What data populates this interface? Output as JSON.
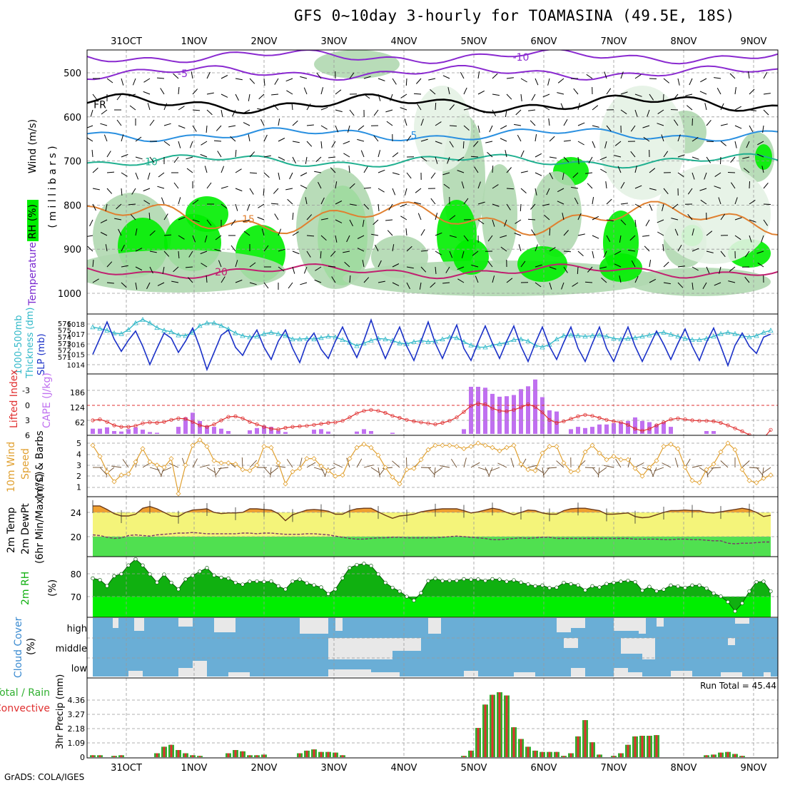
{
  "title": "GFS 0~10day 3-hourly for TOAMASINA (49.5E, 18S)",
  "credit": "GrADS: COLA/IGES",
  "colors": {
    "rh_light": "#e4f2e4",
    "rh_mid": "#b0d8b0",
    "rh_dark": "#72c472",
    "rh_bright": "#00ee00",
    "cape_bar": "#c070f0",
    "lifted_index": "#e03030",
    "wind_speed": "#e0a030",
    "slp": "#1a30c8",
    "thickness": "#30b8c8",
    "temp_fill": "#f0a030",
    "dewpt_band": "#f4f47a",
    "dewpt_fill": "#50e050",
    "rh2m_dark": "#10b010",
    "rh2m_bright": "#00ee00",
    "cloud_bg": "#6aaed6",
    "cloud_fill": "#e8e8e8",
    "precip_total": "#30b030",
    "precip_conv": "#e03030"
  },
  "date_labels": [
    "31OCT",
    "1NOV",
    "2NOV",
    "3NOV",
    "4NOV",
    "5NOV",
    "6NOV",
    "7NOV",
    "8NOV",
    "9NOV"
  ],
  "panel_labels": {
    "p1_wind": "Wind (m/s)",
    "p1_temp": "Temperature (°C)",
    "p1_rh": "RH (%)",
    "p1_mb": "( m i l l i b a r s )",
    "p2_thick": "1000-500mb",
    "p2_thick2": "Thickness (dm)",
    "p2_slp": "SLP (mb)",
    "p3_li": "Lifted Index",
    "p3_cape": "CAPE (J/kg)",
    "p4_a": "10m Wind",
    "p4_b": "Speed",
    "p4_c": "(m/s) & Barbs",
    "p5_a": "2m Temp",
    "p5_b": "2m DewPt",
    "p5_c": "(6hr Min/Max) (°C)",
    "p6_a": "2m RH",
    "p6_b": "(%)",
    "p7_a": "Cloud Cover",
    "p7_b": "(%)",
    "p8_a": "Total / Rain",
    "p8_b": "Convective",
    "p8_c": "3hr Precip (mm)"
  },
  "run_total": "Run Total = 45.44",
  "chart_data": [
    {
      "type": "heatmap",
      "title": "Wind (m/s), Temperature (°C), RH (%)",
      "ylabel": "millibars",
      "y_ticks": [
        "500",
        "600",
        "700",
        "800",
        "900",
        "1000"
      ],
      "temperature_contours": [
        {
          "label": "-10",
          "level_mb": 463
        },
        {
          "label": "-5",
          "level_mb": 500
        },
        {
          "label": "FR",
          "level_mb": 570
        },
        {
          "label": "5",
          "level_mb": 640
        },
        {
          "label": "10",
          "level_mb": 700
        },
        {
          "label": "15",
          "level_mb": 830
        },
        {
          "label": "20",
          "level_mb": 950
        }
      ]
    },
    {
      "type": "line",
      "title": "1000-500mb Thickness (dm) / SLP (mb)",
      "thickness_ticks": [
        "576",
        "575",
        "574",
        "573",
        "572",
        "571"
      ],
      "slp_ticks": [
        "1018",
        "1017",
        "1016",
        "1015",
        "1014"
      ],
      "series": [
        {
          "name": "SLP",
          "values": [
            1015.0,
            1016.6,
            1018.2,
            1016.5,
            1015.3,
            1016.4,
            1017.3,
            1015.8,
            1014.0,
            1015.6,
            1017.1,
            1016.6,
            1015.2,
            1016.3,
            1017.6,
            1015.7,
            1013.5,
            1015.2,
            1016.9,
            1017.4,
            1015.7,
            1014.9,
            1016.3,
            1017.4,
            1015.7,
            1014.5,
            1016.3,
            1017.4,
            1015.6,
            1014.2,
            1016.2,
            1017.1,
            1015.5,
            1014.6,
            1016.3,
            1017.7,
            1016.1,
            1014.7,
            1016.4,
            1018.4,
            1016.3,
            1014.6,
            1016.2,
            1017.7,
            1015.8,
            1014.4,
            1016.3,
            1018.2,
            1016.1,
            1014.6,
            1016.3,
            1017.9,
            1015.6,
            1014.4,
            1016.2,
            1017.8,
            1016.1,
            1014.6,
            1016.3,
            1017.8,
            1015.8,
            1014.3,
            1016.1,
            1017.7,
            1015.8,
            1014.5,
            1016.2,
            1017.7,
            1015.6,
            1014.3,
            1016.1,
            1017.7,
            1015.6,
            1014.3,
            1016.1,
            1017.7,
            1015.8,
            1014.3,
            1015.8,
            1017.3,
            1016.0,
            1014.5,
            1016.1,
            1017.5,
            1015.8,
            1014.4,
            1016.2,
            1017.6,
            1015.8,
            1013.9,
            1015.9,
            1017.1,
            1015.8,
            1015.1,
            1016.7,
            1017.0
          ]
        },
        {
          "name": "Thickness",
          "values": [
            574.8,
            574.6,
            574.3,
            573.9,
            573.8,
            574.4,
            575.4,
            575.9,
            575.4,
            574.7,
            574.3,
            574.1,
            573.6,
            573.5,
            574.0,
            575.0,
            575.4,
            575.4,
            575.0,
            574.5,
            573.9,
            573.5,
            573.3,
            573.4,
            573.8,
            574.0,
            573.8,
            573.5,
            573.0,
            573.0,
            573.1,
            573.0,
            573.2,
            573.4,
            573.3,
            572.9,
            572.5,
            572.0,
            572.4,
            572.8,
            573.1,
            573.0,
            572.8,
            572.4,
            572.3,
            572.6,
            572.8,
            572.6,
            572.7,
            573.0,
            573.3,
            573.2,
            572.6,
            572.1,
            571.8,
            571.8,
            572.1,
            572.3,
            572.5,
            572.9,
            573.0,
            572.7,
            572.1,
            571.8,
            572.2,
            573.0,
            573.5,
            573.6,
            573.5,
            573.4,
            573.5,
            573.6,
            573.4,
            573.1,
            573.0,
            573.1,
            573.2,
            573.4,
            573.6,
            573.9,
            574.0,
            573.7,
            573.4,
            573.1,
            572.9,
            572.9,
            573.1,
            573.4,
            573.8,
            574.0,
            573.8,
            573.5,
            573.3,
            573.5,
            574.0,
            574.3
          ]
        }
      ]
    },
    {
      "type": "bar",
      "title": "Lifted Index / CAPE (J/kg)",
      "li_ticks": [
        "-3",
        "0",
        "3",
        "6"
      ],
      "cape_ticks": [
        "186",
        "124",
        "62"
      ],
      "cape_values": [
        22,
        22,
        28,
        12,
        10,
        20,
        28,
        18,
        8,
        5,
        0,
        0,
        30,
        70,
        90,
        55,
        35,
        30,
        22,
        12,
        0,
        0,
        15,
        25,
        35,
        30,
        15,
        8,
        0,
        0,
        0,
        18,
        20,
        10,
        0,
        0,
        0,
        10,
        20,
        12,
        0,
        0,
        5,
        0,
        0,
        0,
        0,
        0,
        0,
        0,
        0,
        0,
        20,
        200,
        200,
        196,
        170,
        158,
        160,
        165,
        190,
        202,
        231,
        156,
        100,
        95,
        0,
        20,
        30,
        25,
        30,
        40,
        40,
        45,
        50,
        55,
        70,
        55,
        50,
        40,
        50,
        30,
        0,
        0,
        0,
        0,
        12,
        12,
        0,
        0,
        0,
        0,
        0,
        0,
        0,
        0
      ],
      "li_values": [
        3.0,
        2.8,
        3.3,
        4.0,
        4.3,
        4.3,
        4.1,
        3.6,
        3.4,
        3.5,
        3.3,
        2.9,
        2.6,
        2.7,
        3.3,
        4.0,
        4.3,
        3.8,
        3.0,
        2.3,
        2.2,
        2.6,
        3.3,
        3.8,
        4.3,
        4.7,
        4.8,
        4.5,
        4.3,
        4.2,
        4.1,
        3.9,
        3.7,
        3.5,
        3.4,
        3.1,
        2.4,
        1.6,
        1.1,
        0.9,
        1.1,
        1.5,
        2.1,
        2.5,
        2.9,
        3.2,
        3.4,
        3.6,
        3.8,
        3.5,
        3.1,
        2.4,
        1.3,
        0.1,
        -0.4,
        -0.2,
        0.6,
        1.1,
        1.2,
        0.9,
        0.4,
        -0.2,
        0.3,
        1.4,
        2.9,
        3.5,
        3.2,
        2.7,
        2.2,
        1.9,
        2.1,
        2.5,
        2.9,
        3.2,
        3.4,
        3.9,
        4.7,
        5.1,
        4.7,
        4.0,
        3.4,
        2.8,
        2.6,
        2.8,
        3.0,
        3.1,
        3.1,
        3.2,
        3.5,
        4.0,
        4.6,
        5.2,
        5.9,
        6.5,
        6.6,
        4.9
      ]
    },
    {
      "type": "line",
      "title": "10m Wind Speed (m/s) & Barbs",
      "y_ticks": [
        "5",
        "4",
        "3",
        "2",
        "1"
      ],
      "values": [
        4.8,
        3.8,
        2.4,
        1.5,
        2.1,
        2.2,
        3.3,
        4.5,
        3.3,
        3.0,
        2.8,
        3.6,
        0.4,
        3.0,
        4.8,
        5.3,
        4.7,
        3.4,
        3.2,
        3.2,
        3.1,
        2.6,
        2.5,
        3.0,
        4.7,
        4.6,
        3.2,
        1.3,
        2.4,
        2.7,
        3.6,
        3.6,
        2.9,
        2.5,
        2.0,
        2.1,
        3.6,
        4.6,
        4.9,
        4.6,
        3.9,
        2.8,
        1.9,
        1.3,
        2.6,
        2.7,
        3.5,
        4.4,
        4.8,
        4.8,
        4.8,
        4.7,
        4.5,
        4.7,
        5.0,
        4.8,
        4.6,
        4.3,
        4.6,
        4.8,
        3.1,
        2.6,
        2.5,
        4.1,
        4.7,
        4.7,
        3.2,
        2.4,
        2.5,
        4.2,
        4.8,
        4.1,
        3.5,
        3.8,
        3.5,
        3.5,
        2.7,
        2.0,
        2.8,
        3.4,
        4.7,
        4.9,
        4.5,
        2.8,
        1.6,
        1.4,
        2.6,
        3.1,
        4.2,
        5.0,
        4.4,
        2.6,
        1.6,
        1.4,
        1.8,
        2.1
      ]
    },
    {
      "type": "area",
      "title": "2m Temp / 2m DewPt (6hr Min/Max) (°C)",
      "y_ticks": [
        "24",
        "20"
      ],
      "temp_values": [
        25.1,
        25.1,
        24.5,
        23.8,
        23.4,
        23.4,
        23.7,
        24.7,
        25.0,
        24.6,
        24.0,
        23.4,
        23.3,
        24.0,
        24.4,
        24.5,
        24.6,
        24.0,
        23.8,
        23.9,
        23.9,
        24.0,
        24.6,
        24.6,
        24.5,
        24.4,
        23.8,
        22.6,
        23.6,
        24.0,
        24.4,
        24.5,
        24.4,
        24.2,
        23.7,
        23.7,
        24.3,
        24.6,
        24.7,
        24.7,
        24.1,
        23.5,
        23.0,
        23.4,
        23.5,
        23.7,
        24.1,
        24.3,
        24.5,
        24.6,
        24.6,
        24.6,
        24.3,
        23.9,
        24.1,
        24.4,
        24.7,
        24.5,
        24.0,
        23.6,
        24.0,
        24.4,
        24.3,
        23.9,
        23.7,
        23.7,
        24.3,
        24.6,
        24.7,
        24.7,
        24.5,
        24.3,
        23.7,
        23.7,
        23.8,
        23.9,
        23.3,
        23.1,
        23.2,
        23.6,
        24.0,
        24.3,
        24.3,
        24.4,
        24.3,
        24.3,
        24.0,
        23.9,
        24.1,
        24.3,
        24.5,
        24.7,
        24.5,
        24.0,
        23.3,
        23.5
      ],
      "dewpt_values": [
        20.2,
        20.1,
        19.8,
        19.6,
        19.7,
        20.1,
        20.2,
        20.1,
        20.0,
        20.2,
        20.3,
        20.4,
        20.5,
        20.5,
        20.6,
        20.5,
        20.4,
        20.4,
        20.4,
        20.4,
        20.4,
        20.5,
        20.5,
        20.4,
        20.5,
        20.5,
        20.4,
        20.3,
        20.3,
        20.3,
        20.4,
        20.4,
        20.3,
        20.2,
        20.0,
        19.8,
        19.6,
        19.5,
        19.5,
        19.6,
        19.7,
        19.7,
        19.8,
        19.8,
        19.7,
        19.7,
        19.7,
        19.7,
        19.7,
        19.8,
        19.9,
        20.0,
        19.9,
        19.8,
        19.7,
        19.6,
        19.4,
        19.4,
        19.5,
        19.6,
        19.7,
        19.6,
        19.7,
        19.8,
        19.8,
        19.6,
        19.6,
        19.6,
        19.6,
        19.6,
        19.6,
        19.6,
        19.6,
        19.6,
        19.6,
        19.6,
        19.5,
        19.5,
        19.5,
        19.5,
        19.4,
        19.4,
        19.5,
        19.5,
        19.4,
        19.4,
        19.3,
        19.2,
        19.2,
        18.8,
        18.7,
        18.8,
        18.8,
        18.9,
        19.0,
        19.0
      ]
    },
    {
      "type": "area",
      "title": "2m RH (%)",
      "y_ticks": [
        "80",
        "70"
      ],
      "values": [
        78.0,
        77.3,
        74.7,
        79.0,
        79.9,
        83.7,
        86.4,
        83.7,
        79.8,
        76.2,
        79.7,
        76.1,
        73.2,
        77.6,
        79.2,
        81.0,
        82.6,
        79.3,
        78.3,
        78.0,
        76.1,
        75.3,
        76.6,
        76.7,
        76.5,
        76.7,
        74.6,
        73.2,
        76.7,
        77.5,
        75.9,
        75.0,
        74.1,
        71.2,
        73.2,
        78.1,
        82.6,
        83.9,
        84.4,
        83.5,
        79.8,
        76.1,
        73.9,
        72.3,
        70.0,
        68.3,
        71.6,
        76.9,
        77.9,
        76.9,
        77.0,
        77.0,
        77.7,
        77.5,
        77.6,
        77.0,
        77.7,
        77.5,
        76.6,
        77.2,
        76.2,
        75.4,
        74.6,
        74.9,
        73.8,
        74.0,
        76.1,
        75.5,
        75.0,
        72.8,
        74.6,
        74.1,
        75.6,
        76.1,
        76.6,
        77.0,
        76.4,
        72.7,
        74.3,
        72.4,
        73.1,
        74.9,
        74.5,
        73.9,
        74.9,
        74.9,
        73.6,
        71.4,
        70.1,
        67.7,
        63.6,
        67.1,
        72.3,
        76.4,
        76.6,
        72.3
      ]
    },
    {
      "type": "heatmap",
      "title": "Cloud Cover (%)",
      "rows": [
        "high",
        "middle",
        "low"
      ]
    },
    {
      "type": "bar",
      "title": "3hr Precip (mm)",
      "y_ticks": [
        "4.36",
        "3.27",
        "2.18",
        "1.09",
        "0"
      ],
      "annotation": "Run Total = 45.44",
      "total_values": [
        0.15,
        0.15,
        0,
        0.1,
        0.15,
        0,
        0,
        0,
        0,
        0.3,
        0.8,
        0.95,
        0.55,
        0.3,
        0.15,
        0.1,
        0,
        0,
        0,
        0.3,
        0.55,
        0.45,
        0.15,
        0.15,
        0.2,
        0,
        0,
        0,
        0,
        0.3,
        0.5,
        0.6,
        0.4,
        0.4,
        0.35,
        0.15,
        0,
        0,
        0,
        0,
        0,
        0,
        0,
        0,
        0,
        0,
        0,
        0,
        0,
        0,
        0,
        0,
        0.1,
        0.5,
        2.25,
        4.05,
        4.8,
        5.0,
        4.75,
        2.3,
        1.4,
        0.8,
        0.5,
        0.4,
        0.4,
        0.4,
        0.1,
        0.3,
        1.6,
        2.85,
        1.15,
        0.2,
        0,
        0.1,
        0.3,
        0.95,
        1.6,
        1.65,
        1.65,
        1.7,
        0,
        0,
        0,
        0,
        0,
        0,
        0.15,
        0.2,
        0.35,
        0.4,
        0.25,
        0.1,
        0,
        0,
        0,
        0
      ]
    }
  ]
}
